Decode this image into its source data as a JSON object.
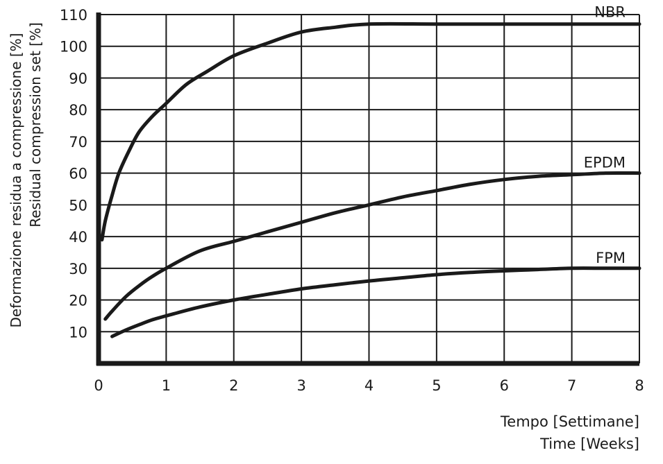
{
  "chart_data": {
    "type": "line",
    "ylabel_it": "Deformazione residua a compressione [%]",
    "ylabel_en": "Residual compression set [%]",
    "xlabel_it": "Tempo [Settimane]",
    "xlabel_en": "Time [Weeks]",
    "xlim": [
      0,
      8
    ],
    "ylim": [
      0,
      110
    ],
    "grid": true,
    "x_ticks": [
      "0",
      "1",
      "2",
      "3",
      "4",
      "5",
      "6",
      "7",
      "8"
    ],
    "y_ticks": [
      "10",
      "20",
      "30",
      "40",
      "50",
      "60",
      "70",
      "80",
      "90",
      "100",
      "110"
    ],
    "series": [
      {
        "name": "NBR",
        "x": [
          0.05,
          0.1,
          0.2,
          0.3,
          0.45,
          0.6,
          0.8,
          1.0,
          1.3,
          1.6,
          2.0,
          2.5,
          3.0,
          3.5,
          4.0,
          5.0,
          6.0,
          7.0,
          8.0
        ],
        "y": [
          39,
          45,
          53,
          60,
          67,
          73,
          78,
          82,
          88,
          92,
          97,
          101,
          104.5,
          106,
          107,
          107,
          107,
          107,
          107
        ]
      },
      {
        "name": "EPDM",
        "x": [
          0.1,
          0.2,
          0.4,
          0.6,
          0.8,
          1.0,
          1.5,
          2.0,
          2.5,
          3.0,
          3.5,
          4.0,
          4.5,
          5.0,
          5.5,
          6.0,
          6.5,
          7.0,
          7.5,
          8.0
        ],
        "y": [
          14,
          16.5,
          21,
          24.5,
          27.5,
          30,
          35.5,
          38.5,
          41.5,
          44.5,
          47.5,
          50,
          52.5,
          54.5,
          56.5,
          58,
          59,
          59.5,
          60,
          60
        ]
      },
      {
        "name": "FPM",
        "x": [
          0.2,
          0.4,
          0.6,
          0.8,
          1.0,
          1.5,
          2.0,
          2.5,
          3.0,
          3.5,
          4.0,
          4.5,
          5.0,
          5.5,
          6.0,
          6.5,
          7.0,
          7.5,
          8.0
        ],
        "y": [
          8.5,
          10.5,
          12.2,
          13.8,
          15,
          17.8,
          20,
          21.8,
          23.5,
          24.8,
          26,
          27,
          28,
          28.7,
          29.2,
          29.6,
          30,
          30,
          30
        ]
      }
    ]
  }
}
